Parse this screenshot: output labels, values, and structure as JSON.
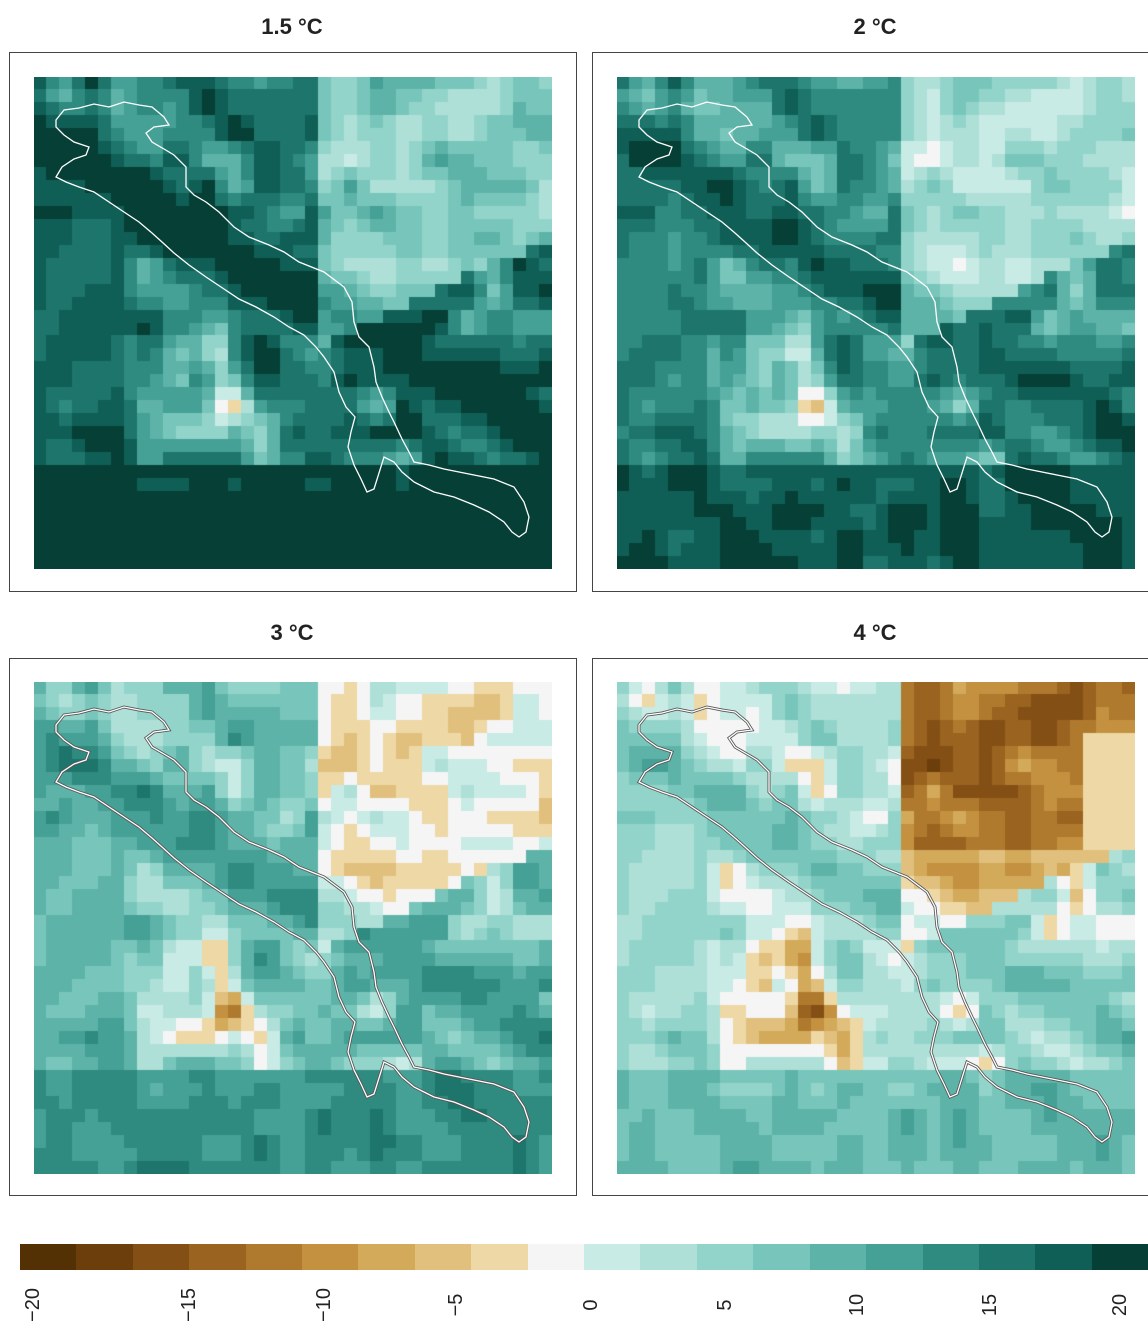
{
  "panels": [
    {
      "id": "p15",
      "title": "1.5 °C",
      "warming_level": 1.5
    },
    {
      "id": "p2",
      "title": "2 °C",
      "warming_level": 2
    },
    {
      "id": "p3",
      "title": "3 °C",
      "warming_level": 3
    },
    {
      "id": "p4",
      "title": "4 °C",
      "warming_level": 4
    }
  ],
  "colorbar": {
    "min": -20,
    "max": 20,
    "ticks": [
      "−20",
      "−15",
      "−10",
      "−5",
      "0",
      "5",
      "10",
      "15",
      "20"
    ],
    "palette": [
      "#543005",
      "#6b3e0c",
      "#834f14",
      "#9a6320",
      "#b07a2e",
      "#c3913f",
      "#d3a95a",
      "#e0c07c",
      "#eed8a6",
      "#f5f5f5",
      "#c9ebe5",
      "#aee0d8",
      "#93d4ca",
      "#78c6bb",
      "#5eb3a8",
      "#45a096",
      "#2f8a80",
      "#1d756b",
      "#0f5f56",
      "#063f36"
    ]
  },
  "outline_color": "#ffffff"
}
